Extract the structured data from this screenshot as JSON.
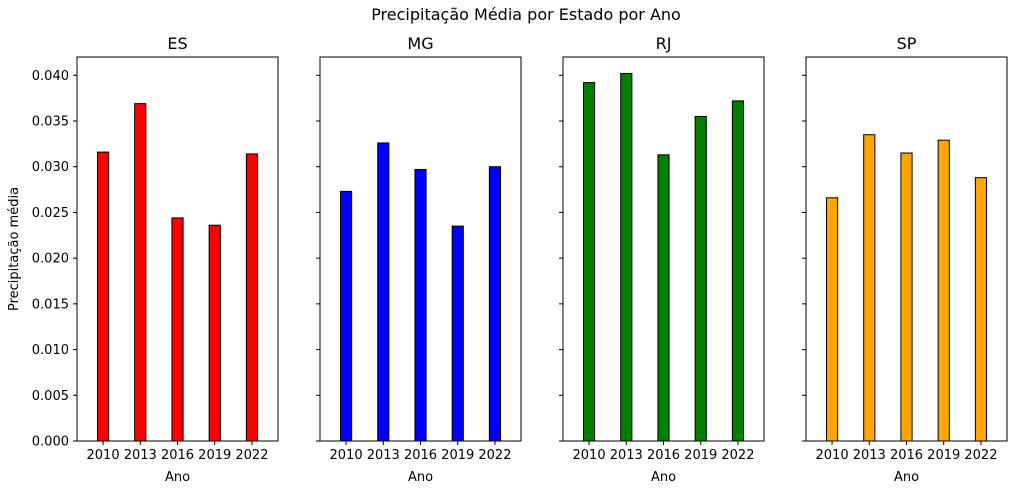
{
  "chart_data": {
    "type": "bar",
    "title": "Precipitação Média por Estado por Ano",
    "ylabel": "Precipitação média",
    "xlabel": "Ano",
    "ylim": [
      0,
      0.042
    ],
    "yticks": [
      "0.000",
      "0.005",
      "0.010",
      "0.015",
      "0.020",
      "0.025",
      "0.030",
      "0.035",
      "0.040"
    ],
    "categories": [
      "2010",
      "2013",
      "2016",
      "2019",
      "2022"
    ],
    "grid": false,
    "panels": [
      {
        "name": "ES",
        "color": "#ff0000",
        "values": [
          0.0316,
          0.0369,
          0.0244,
          0.0236,
          0.0314
        ]
      },
      {
        "name": "MG",
        "color": "#0000ff",
        "values": [
          0.0273,
          0.0326,
          0.0297,
          0.0235,
          0.03
        ]
      },
      {
        "name": "RJ",
        "color": "#008000",
        "values": [
          0.0392,
          0.0402,
          0.0313,
          0.0355,
          0.0372
        ]
      },
      {
        "name": "SP",
        "color": "#ffa500",
        "values": [
          0.0266,
          0.0335,
          0.0315,
          0.0329,
          0.0288
        ]
      }
    ]
  }
}
